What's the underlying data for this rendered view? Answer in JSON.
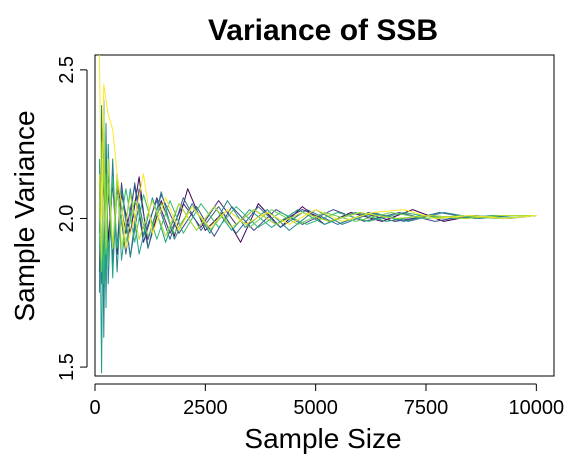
{
  "chart_data": {
    "type": "line",
    "title": "Variance of SSB",
    "xlabel": "Sample Size",
    "ylabel": "Sample Variance",
    "xlim": [
      0,
      10400
    ],
    "ylim": [
      1.47,
      2.55
    ],
    "x_ticks": [
      0,
      2500,
      5000,
      7500,
      10000
    ],
    "y_ticks": [
      1.5,
      2.0,
      2.5
    ],
    "x_tick_labels": [
      "0",
      "2500",
      "5000",
      "7500",
      "10000"
    ],
    "y_tick_labels": [
      "1.5",
      "2.0",
      "2.5"
    ],
    "grid": false,
    "legend": "none",
    "series": [
      {
        "color": "#440154",
        "values": [
          [
            100,
            1.82
          ],
          [
            150,
            2.22
          ],
          [
            200,
            1.72
          ],
          [
            250,
            2.18
          ],
          [
            300,
            1.92
          ],
          [
            400,
            2.12
          ],
          [
            500,
            1.88
          ],
          [
            600,
            2.08
          ],
          [
            800,
            1.95
          ],
          [
            1000,
            2.14
          ],
          [
            1200,
            1.9
          ],
          [
            1500,
            2.06
          ],
          [
            1800,
            1.94
          ],
          [
            2100,
            2.1
          ],
          [
            2500,
            1.96
          ],
          [
            2900,
            2.02
          ],
          [
            3300,
            1.92
          ],
          [
            3700,
            2.05
          ],
          [
            4200,
            1.97
          ],
          [
            4700,
            2.04
          ],
          [
            5200,
            1.98
          ],
          [
            5800,
            2.02
          ],
          [
            6500,
            1.99
          ],
          [
            7200,
            2.03
          ],
          [
            7900,
            1.99
          ],
          [
            8600,
            2.01
          ],
          [
            9300,
            2.0
          ],
          [
            10000,
            2.01
          ]
        ]
      },
      {
        "color": "#482878",
        "values": [
          [
            100,
            2.05
          ],
          [
            150,
            1.88
          ],
          [
            200,
            2.15
          ],
          [
            250,
            1.9
          ],
          [
            300,
            2.1
          ],
          [
            400,
            1.86
          ],
          [
            500,
            2.12
          ],
          [
            700,
            1.95
          ],
          [
            900,
            2.11
          ],
          [
            1100,
            1.92
          ],
          [
            1400,
            2.07
          ],
          [
            1700,
            1.95
          ],
          [
            2000,
            2.05
          ],
          [
            2400,
            1.97
          ],
          [
            2800,
            2.06
          ],
          [
            3200,
            1.98
          ],
          [
            3600,
            2.03
          ],
          [
            4100,
            1.98
          ],
          [
            4700,
            2.03
          ],
          [
            5300,
            1.99
          ],
          [
            6000,
            2.02
          ],
          [
            6800,
            1.99
          ],
          [
            7600,
            2.01
          ],
          [
            8400,
            2.0
          ],
          [
            9200,
            2.01
          ],
          [
            10000,
            2.01
          ]
        ]
      },
      {
        "color": "#3e4989",
        "values": [
          [
            100,
            1.95
          ],
          [
            150,
            2.3
          ],
          [
            200,
            1.8
          ],
          [
            250,
            2.2
          ],
          [
            300,
            1.85
          ],
          [
            400,
            2.15
          ],
          [
            500,
            1.9
          ],
          [
            600,
            2.12
          ],
          [
            800,
            1.87
          ],
          [
            1000,
            2.1
          ],
          [
            1200,
            1.93
          ],
          [
            1500,
            2.08
          ],
          [
            1900,
            1.95
          ],
          [
            2300,
            2.04
          ],
          [
            2700,
            1.94
          ],
          [
            3100,
            2.04
          ],
          [
            3600,
            1.96
          ],
          [
            4100,
            2.03
          ],
          [
            4700,
            1.98
          ],
          [
            5400,
            2.03
          ],
          [
            6100,
            1.99
          ],
          [
            6900,
            2.02
          ],
          [
            7700,
            1.99
          ],
          [
            8500,
            2.01
          ],
          [
            9300,
            2.0
          ],
          [
            10000,
            2.01
          ]
        ]
      },
      {
        "color": "#31688e",
        "values": [
          [
            100,
            2.12
          ],
          [
            150,
            1.78
          ],
          [
            200,
            2.25
          ],
          [
            250,
            1.75
          ],
          [
            300,
            2.18
          ],
          [
            400,
            1.85
          ],
          [
            500,
            2.1
          ],
          [
            700,
            1.88
          ],
          [
            900,
            2.12
          ],
          [
            1100,
            1.94
          ],
          [
            1400,
            2.06
          ],
          [
            1700,
            1.93
          ],
          [
            2000,
            2.07
          ],
          [
            2400,
            1.96
          ],
          [
            2800,
            2.04
          ],
          [
            3200,
            1.95
          ],
          [
            3700,
            2.04
          ],
          [
            4200,
            1.97
          ],
          [
            4800,
            2.03
          ],
          [
            5500,
            1.98
          ],
          [
            6200,
            2.02
          ],
          [
            7000,
            1.99
          ],
          [
            7800,
            2.02
          ],
          [
            8600,
            2.0
          ],
          [
            9400,
            2.01
          ],
          [
            10000,
            2.01
          ]
        ]
      },
      {
        "color": "#26828e",
        "values": [
          [
            100,
            1.75
          ],
          [
            150,
            2.38
          ],
          [
            200,
            1.6
          ],
          [
            250,
            2.32
          ],
          [
            300,
            1.78
          ],
          [
            400,
            2.2
          ],
          [
            500,
            1.82
          ],
          [
            600,
            2.1
          ],
          [
            800,
            1.87
          ],
          [
            1000,
            2.05
          ],
          [
            1200,
            1.9
          ],
          [
            1500,
            2.09
          ],
          [
            1800,
            1.93
          ],
          [
            2200,
            2.05
          ],
          [
            2600,
            1.95
          ],
          [
            3000,
            2.06
          ],
          [
            3400,
            1.97
          ],
          [
            3900,
            2.03
          ],
          [
            4400,
            1.96
          ],
          [
            5000,
            2.03
          ],
          [
            5600,
            1.98
          ],
          [
            6300,
            2.02
          ],
          [
            7100,
            1.99
          ],
          [
            7900,
            2.02
          ],
          [
            8700,
            2.0
          ],
          [
            9500,
            2.01
          ],
          [
            10000,
            2.01
          ]
        ]
      },
      {
        "color": "#1f9e89",
        "values": [
          [
            100,
            2.2
          ],
          [
            150,
            1.48
          ],
          [
            200,
            2.4
          ],
          [
            250,
            1.7
          ],
          [
            300,
            2.25
          ],
          [
            400,
            1.8
          ],
          [
            500,
            2.15
          ],
          [
            600,
            1.86
          ],
          [
            800,
            2.1
          ],
          [
            1000,
            1.88
          ],
          [
            1300,
            2.07
          ],
          [
            1600,
            1.92
          ],
          [
            1900,
            2.05
          ],
          [
            2300,
            1.96
          ],
          [
            2700,
            2.04
          ],
          [
            3100,
            1.96
          ],
          [
            3500,
            2.03
          ],
          [
            4000,
            1.97
          ],
          [
            4600,
            2.03
          ],
          [
            5200,
            1.98
          ],
          [
            5900,
            2.02
          ],
          [
            6600,
            1.99
          ],
          [
            7400,
            2.01
          ],
          [
            8200,
            2.0
          ],
          [
            9000,
            2.01
          ],
          [
            10000,
            2.01
          ]
        ]
      },
      {
        "color": "#35b779",
        "values": [
          [
            100,
            1.9
          ],
          [
            150,
            2.26
          ],
          [
            200,
            1.78
          ],
          [
            250,
            2.15
          ],
          [
            300,
            1.84
          ],
          [
            400,
            2.14
          ],
          [
            500,
            1.9
          ],
          [
            700,
            2.1
          ],
          [
            900,
            1.92
          ],
          [
            1100,
            2.08
          ],
          [
            1400,
            1.93
          ],
          [
            1700,
            2.06
          ],
          [
            2000,
            1.95
          ],
          [
            2400,
            2.05
          ],
          [
            2800,
            1.97
          ],
          [
            3200,
            2.04
          ],
          [
            3700,
            1.97
          ],
          [
            4200,
            2.02
          ],
          [
            4800,
            1.98
          ],
          [
            5500,
            2.02
          ],
          [
            6200,
            1.99
          ],
          [
            7000,
            2.02
          ],
          [
            7800,
            2.0
          ],
          [
            8600,
            2.01
          ],
          [
            9400,
            2.0
          ],
          [
            10000,
            2.01
          ]
        ]
      },
      {
        "color": "#6ece58",
        "values": [
          [
            100,
            2.05
          ],
          [
            150,
            1.82
          ],
          [
            200,
            2.2
          ],
          [
            250,
            1.88
          ],
          [
            300,
            2.12
          ],
          [
            400,
            1.9
          ],
          [
            500,
            2.08
          ],
          [
            700,
            1.92
          ],
          [
            900,
            2.06
          ],
          [
            1200,
            1.94
          ],
          [
            1500,
            2.05
          ],
          [
            1800,
            1.95
          ],
          [
            2200,
            2.04
          ],
          [
            2600,
            1.96
          ],
          [
            3000,
            2.03
          ],
          [
            3500,
            1.97
          ],
          [
            4000,
            2.03
          ],
          [
            4600,
            1.98
          ],
          [
            5200,
            2.02
          ],
          [
            5900,
            1.99
          ],
          [
            6700,
            2.02
          ],
          [
            7500,
            2.0
          ],
          [
            8300,
            2.01
          ],
          [
            9100,
            2.0
          ],
          [
            10000,
            2.01
          ]
        ]
      },
      {
        "color": "#b5de2b",
        "values": [
          [
            100,
            2.15
          ],
          [
            150,
            1.86
          ],
          [
            200,
            2.35
          ],
          [
            250,
            1.9
          ],
          [
            300,
            2.2
          ],
          [
            400,
            1.9
          ],
          [
            500,
            2.14
          ],
          [
            600,
            1.9
          ],
          [
            800,
            2.08
          ],
          [
            1000,
            1.93
          ],
          [
            1300,
            2.06
          ],
          [
            1600,
            1.94
          ],
          [
            1900,
            2.05
          ],
          [
            2300,
            1.96
          ],
          [
            2700,
            2.04
          ],
          [
            3100,
            1.97
          ],
          [
            3600,
            2.03
          ],
          [
            4100,
            1.98
          ],
          [
            4700,
            2.02
          ],
          [
            5300,
            1.99
          ],
          [
            6000,
            2.02
          ],
          [
            6800,
            2.0
          ],
          [
            7600,
            2.01
          ],
          [
            8400,
            2.0
          ],
          [
            9200,
            2.01
          ],
          [
            10000,
            2.01
          ]
        ]
      },
      {
        "color": "#fde725",
        "values": [
          [
            100,
            2.55
          ],
          [
            150,
            2.0
          ],
          [
            200,
            2.45
          ],
          [
            300,
            2.35
          ],
          [
            400,
            2.3
          ],
          [
            500,
            2.15
          ],
          [
            600,
            2.05
          ],
          [
            700,
            1.9
          ],
          [
            900,
            2.0
          ],
          [
            1100,
            2.15
          ],
          [
            1300,
            1.95
          ],
          [
            1600,
            2.07
          ],
          [
            1900,
            1.96
          ],
          [
            2200,
            2.04
          ],
          [
            2600,
            1.97
          ],
          [
            3000,
            2.03
          ],
          [
            3400,
            1.98
          ],
          [
            3900,
            2.02
          ],
          [
            4400,
            1.98
          ],
          [
            5000,
            2.03
          ],
          [
            5600,
            1.99
          ],
          [
            6300,
            2.02
          ],
          [
            7000,
            2.03
          ],
          [
            7700,
            2.0
          ],
          [
            8500,
            2.01
          ],
          [
            9300,
            2.0
          ],
          [
            10000,
            2.01
          ]
        ]
      }
    ]
  }
}
